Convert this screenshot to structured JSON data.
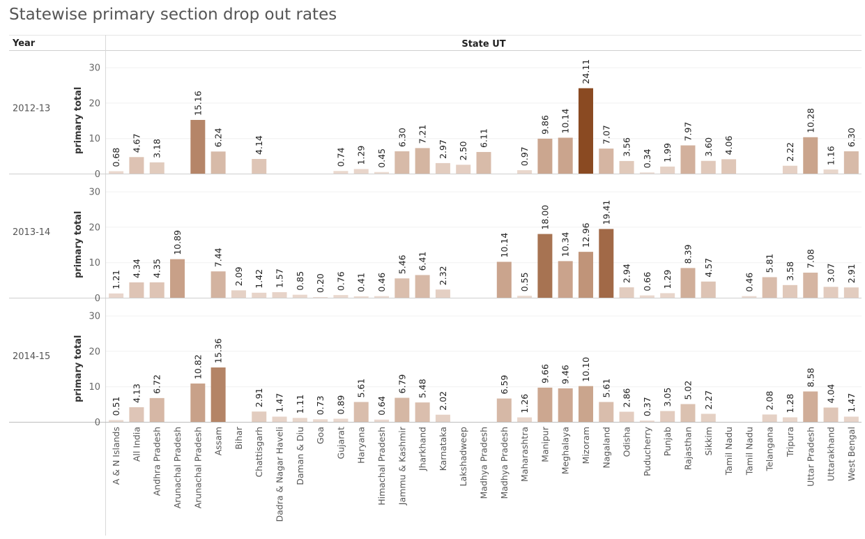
{
  "chart_data": {
    "type": "bar",
    "title": "Statewise primary section drop out rates",
    "column_header": "State UT",
    "row_header": "Year",
    "ylabel": "primary total",
    "ylim": [
      0,
      30
    ],
    "yticks": [
      0,
      10,
      20,
      30
    ],
    "legend": "none",
    "color_encoding": "sequential by value",
    "colors": {
      "low": "#ecdcd3",
      "mid": "#c49a80",
      "high": "#8a4a22"
    },
    "categories": [
      "A & N Islands",
      "All India",
      "Andhra Pradesh",
      "Arunachal  Pradesh",
      "Arunachal Pradesh",
      "Assam",
      "Bihar",
      "Chattisgarh",
      "Dadra & Nagar Haveli",
      "Daman & Diu",
      "Goa",
      "Gujarat",
      "Haryana",
      "Himachal Pradesh",
      "Jammu & Kashmir",
      "Jharkhand",
      "Karnataka",
      "Lakshadweep",
      "Madhya  Pradesh",
      "Madhya Pradesh",
      "Maharashtra",
      "Manipur",
      "Meghalaya",
      "Mizoram",
      "Nagaland",
      "Odisha",
      "Puducherry",
      "Punjab",
      "Rajasthan",
      "Sikkim",
      "Tamil  Nadu",
      "Tamil Nadu",
      "Telangana",
      "Tripura",
      "Uttar Pradesh",
      "Uttarakhand",
      "West Bengal"
    ],
    "series": [
      {
        "name": "2012-13",
        "values": [
          0.68,
          4.67,
          3.18,
          null,
          15.16,
          6.24,
          null,
          4.14,
          null,
          null,
          null,
          0.74,
          1.29,
          0.45,
          6.3,
          7.21,
          2.97,
          2.5,
          6.11,
          null,
          0.97,
          9.86,
          10.14,
          24.11,
          7.07,
          3.56,
          0.34,
          1.99,
          7.97,
          3.6,
          4.06,
          null,
          null,
          2.22,
          10.28,
          1.16,
          6.3
        ]
      },
      {
        "name": "2013-14",
        "values": [
          1.21,
          4.34,
          4.35,
          10.89,
          null,
          7.44,
          2.09,
          1.42,
          1.57,
          0.85,
          0.2,
          0.76,
          0.41,
          0.46,
          5.46,
          6.41,
          2.32,
          null,
          null,
          10.14,
          0.55,
          18.0,
          10.34,
          12.96,
          19.41,
          2.94,
          0.66,
          1.29,
          8.39,
          4.57,
          null,
          0.46,
          5.81,
          3.58,
          7.08,
          3.07,
          2.91
        ]
      },
      {
        "name": "2014-15",
        "values": [
          0.51,
          4.13,
          6.72,
          null,
          10.82,
          15.36,
          null,
          2.91,
          1.47,
          1.11,
          0.73,
          0.89,
          5.61,
          0.64,
          6.79,
          5.48,
          2.02,
          null,
          null,
          6.59,
          1.26,
          9.66,
          9.46,
          10.1,
          5.61,
          2.86,
          0.37,
          3.05,
          5.02,
          2.27,
          null,
          null,
          2.08,
          1.28,
          8.58,
          4.04,
          1.47
        ]
      }
    ]
  }
}
